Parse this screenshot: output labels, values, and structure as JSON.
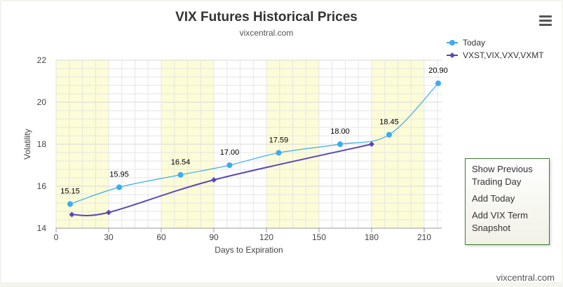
{
  "chart_data": {
    "type": "line",
    "title": "VIX Futures Historical Prices",
    "subtitle": "vixcentral.com",
    "xlabel": "Days to Expiration",
    "ylabel": "Volatility",
    "xlim": [
      0,
      220
    ],
    "ylim": [
      14,
      22
    ],
    "x_ticks": [
      0,
      30,
      60,
      90,
      120,
      150,
      180,
      210
    ],
    "y_ticks": [
      14,
      16,
      18,
      20,
      22
    ],
    "grid": true,
    "shaded_bands": [
      [
        0,
        30
      ],
      [
        60,
        90
      ],
      [
        120,
        150
      ],
      [
        180,
        210
      ]
    ],
    "legend_position": "top-right",
    "series": [
      {
        "name": "Today",
        "color": "#3cabf0",
        "marker": "circle",
        "x": [
          8,
          36,
          71,
          99,
          127,
          162,
          190,
          218
        ],
        "y": [
          15.15,
          15.95,
          16.54,
          17.0,
          17.59,
          18.0,
          18.45,
          20.9
        ],
        "labels": [
          "15.15",
          "15.95",
          "16.54",
          "17.00",
          "17.59",
          "18.00",
          "18.45",
          "20.90"
        ]
      },
      {
        "name": "VXST,VIX,VXV,VXMT",
        "color": "#5b47b6",
        "marker": "diamond",
        "x": [
          9,
          30,
          90,
          180
        ],
        "y": [
          14.65,
          14.75,
          16.3,
          18.0
        ]
      }
    ]
  },
  "menu": {
    "items": [
      "Show Previous Trading Day",
      "Add Today",
      "Add VIX Term Snapshot"
    ]
  },
  "footer": {
    "credit": "vixcentral.com"
  },
  "icons": {
    "menu": "hamburger-menu-icon"
  }
}
